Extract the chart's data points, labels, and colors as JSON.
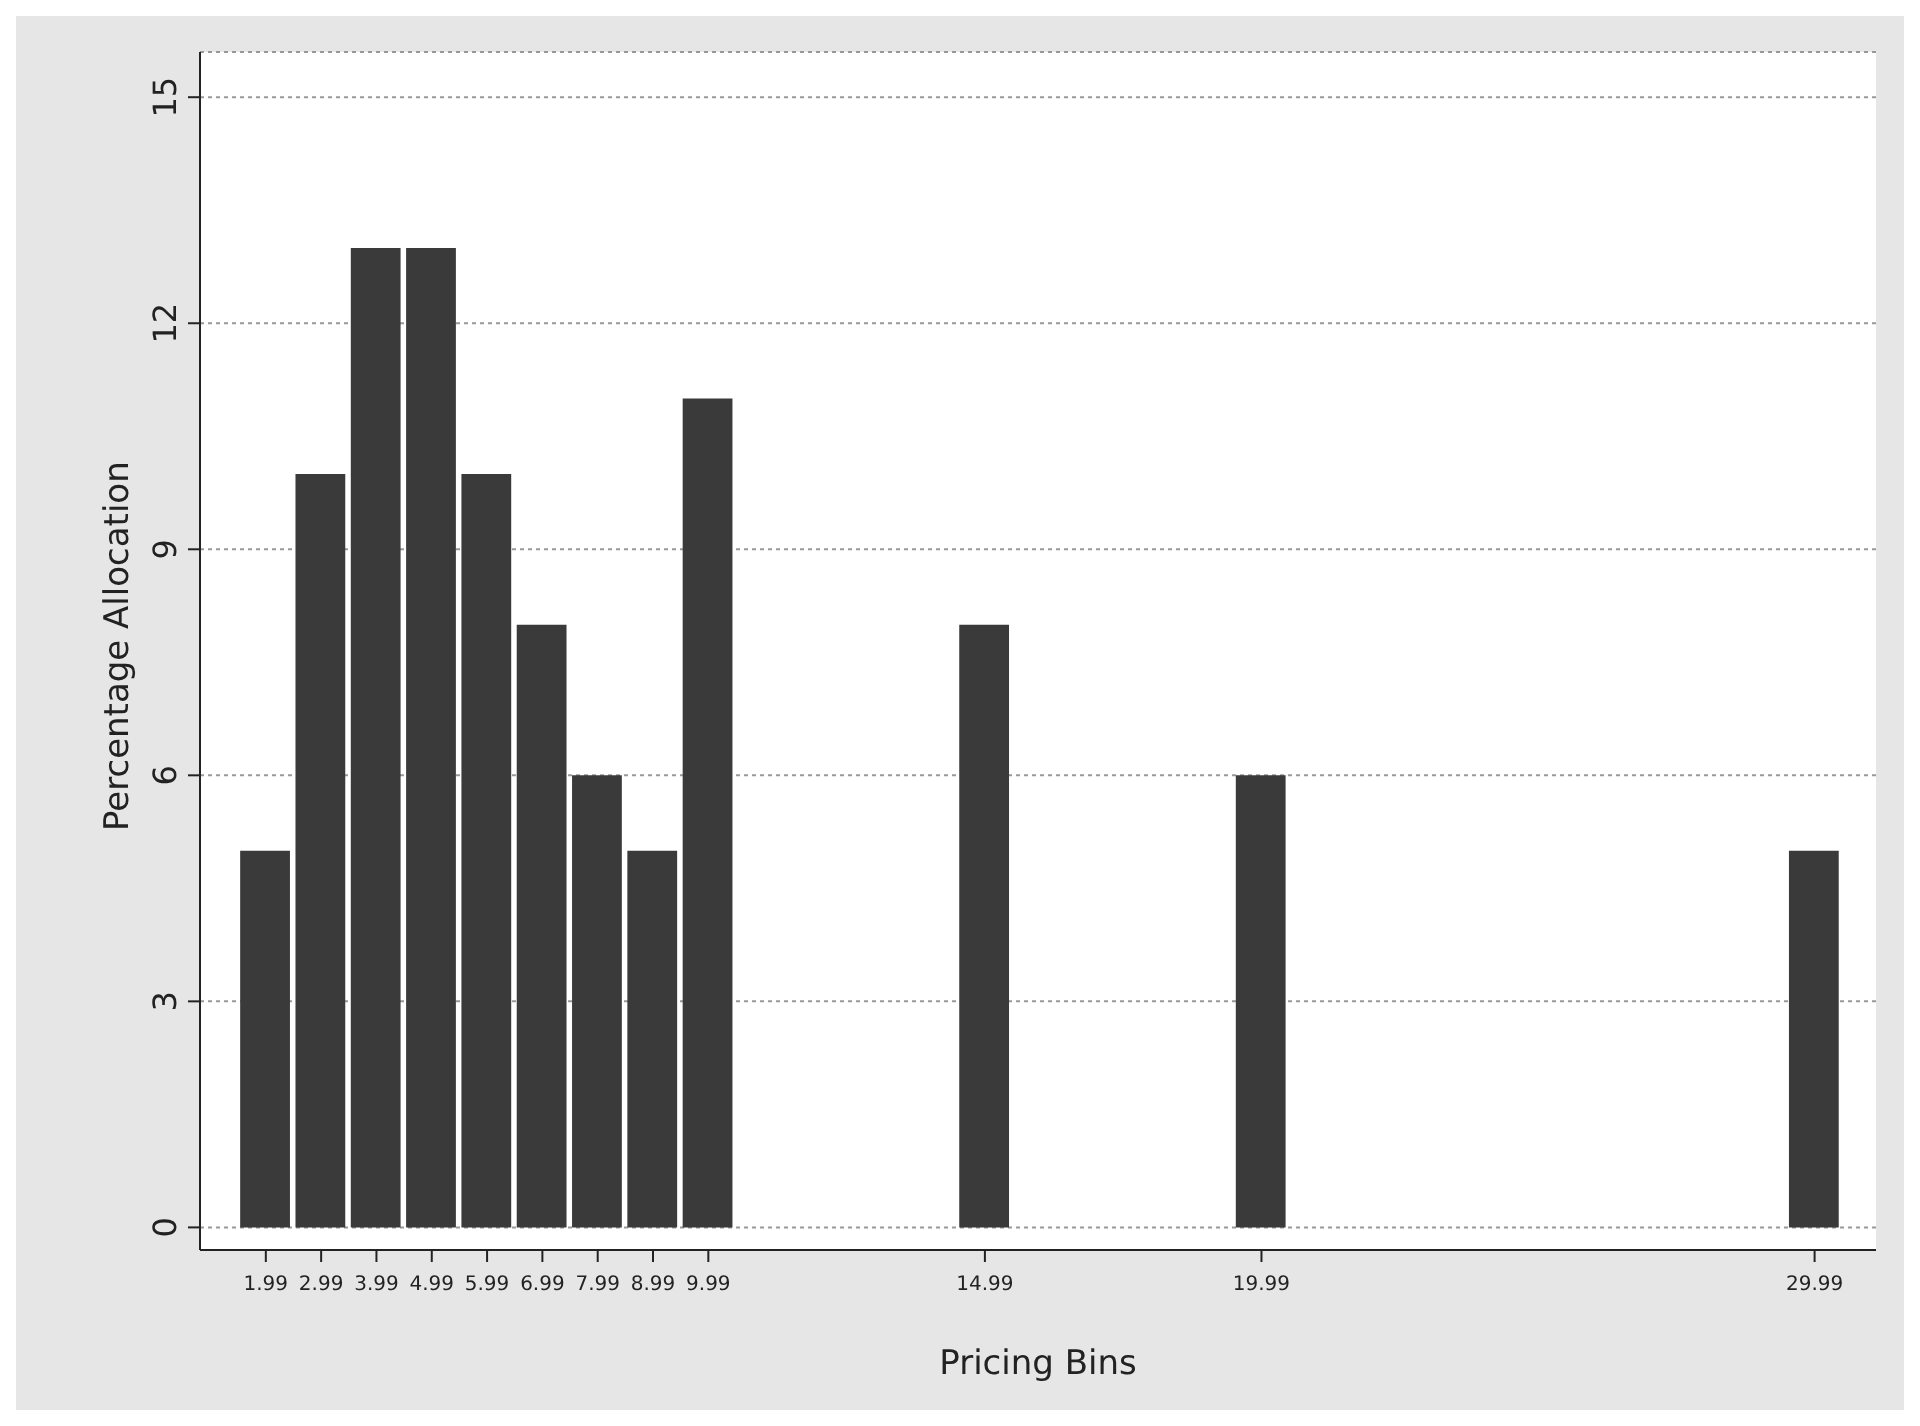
{
  "chart_data": {
    "type": "bar",
    "xlabel": "Pricing Bins",
    "ylabel": "Percentage Allocation",
    "x": [
      1.99,
      2.99,
      3.99,
      4.99,
      5.99,
      6.99,
      7.99,
      8.99,
      9.99,
      14.99,
      19.99,
      29.99
    ],
    "values": [
      5,
      10,
      13,
      13,
      10,
      8,
      6,
      5,
      11,
      8,
      6,
      5
    ],
    "color": "#3a3a3a",
    "xlim": [
      0.8,
      31.1
    ],
    "xticks": [
      1.99,
      2.99,
      3.99,
      4.99,
      5.99,
      6.99,
      7.99,
      8.99,
      9.99,
      14.99,
      19.99,
      29.99
    ],
    "ylim": [
      -0.3,
      15.6
    ],
    "yticks": [
      0,
      3,
      6,
      9,
      12,
      15
    ],
    "grid": "y",
    "legend": false
  }
}
